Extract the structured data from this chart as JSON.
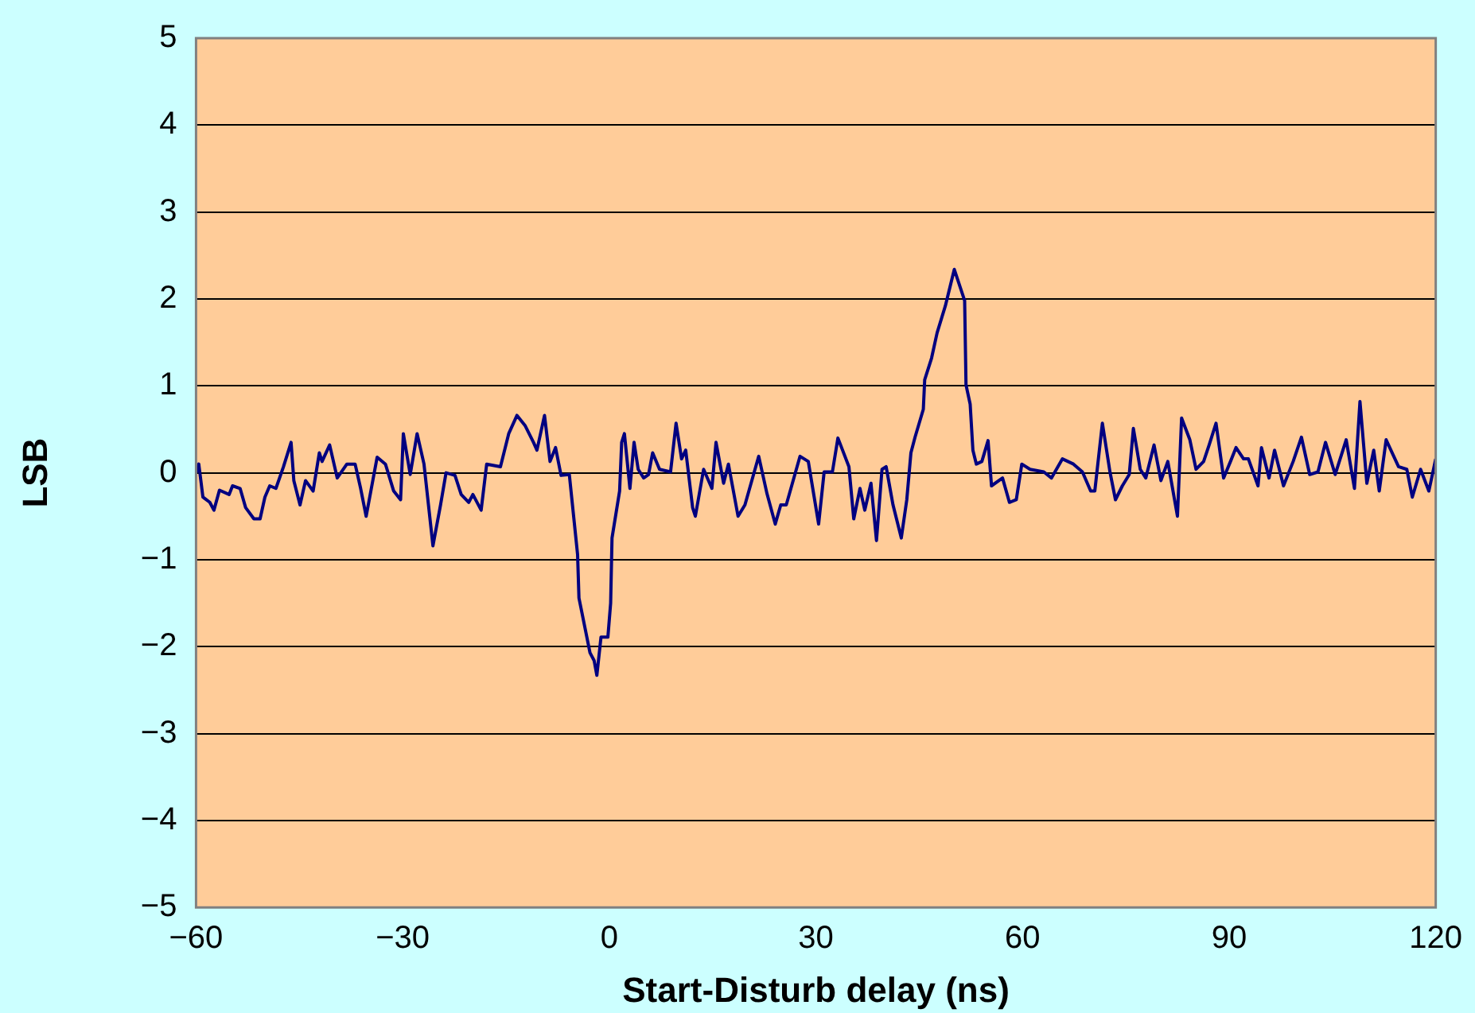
{
  "chart_data": {
    "type": "line",
    "xlabel": "Start-Disturb delay (ns)",
    "ylabel": "LSB",
    "xlim": [
      -60,
      120
    ],
    "xticks": [
      -60,
      -30,
      0,
      30,
      60,
      90,
      120
    ],
    "ylim": [
      -5,
      5
    ],
    "yticks": [
      -5,
      -4,
      -3,
      -2,
      -1,
      0,
      1,
      2,
      3,
      4,
      5
    ],
    "grid": "y",
    "legend": false,
    "marker": "none",
    "line_style": "solid",
    "series": [
      {
        "color": "#000080",
        "x": [
          -60,
          -59.6,
          -59,
          -58,
          -57.4,
          -56.6,
          -55.2,
          -54.7,
          -53.6,
          -52.8,
          -51.6,
          -50.7,
          -50,
          -49.3,
          -48.4,
          -47.3,
          -46.2,
          -45.8,
          -44.9,
          -44.1,
          -43,
          -42.1,
          -41.7,
          -40.6,
          -39.5,
          -38.1,
          -36.9,
          -36.1,
          -35.3,
          -33.7,
          -32.5,
          -31.3,
          -30.3,
          -29.9,
          -28.9,
          -27.9,
          -26.9,
          -25.6,
          -24.5,
          -23.7,
          -22.4,
          -21.5,
          -20.4,
          -19.8,
          -18.6,
          -17.8,
          -15.8,
          -14.6,
          -13.4,
          -12.2,
          -11,
          -10.5,
          -9.4,
          -8.6,
          -7.8,
          -7,
          -5.8,
          -4.6,
          -4.4,
          -2.8,
          -2.2,
          -1.8,
          -1.2,
          -0.2,
          0.2,
          0.4,
          1.5,
          1.8,
          2.2,
          3,
          3.6,
          4.2,
          5,
          5.7,
          6.3,
          7.3,
          8.9,
          9.7,
          10.5,
          11.1,
          12.1,
          12.5,
          13.7,
          14.9,
          15.5,
          16.6,
          17.3,
          18.7,
          19.7,
          21.7,
          22.9,
          24.1,
          24.9,
          25.7,
          27.7,
          28.9,
          30.4,
          31.2,
          32.4,
          33.2,
          34.8,
          35.5,
          36.4,
          37.1,
          38,
          38.8,
          39.6,
          40.2,
          41.2,
          42.4,
          43.2,
          43.8,
          44.4,
          45.6,
          45.8,
          46.8,
          47.6,
          48.8,
          50.1,
          51.6,
          51.8,
          52.4,
          52.8,
          53.3,
          54.1,
          55,
          55.5,
          57.1,
          58.1,
          59.1,
          59.9,
          61.1,
          63.1,
          64.2,
          65.8,
          67.4,
          68.7,
          69.9,
          70.5,
          71.6,
          72.7,
          73.5,
          74.5,
          75.5,
          76.1,
          77.1,
          77.9,
          79.1,
          80.1,
          81.1,
          82.5,
          83.1,
          84.3,
          85.2,
          86.3,
          87.1,
          88.1,
          89.2,
          90.2,
          91,
          92.1,
          92.8,
          94.2,
          94.7,
          95.8,
          96.6,
          97.9,
          99.3,
          100.5,
          101.7,
          102.9,
          104,
          105.4,
          107,
          108.2,
          109,
          110,
          111,
          111.8,
          112.8,
          114.6,
          115.8,
          116.6,
          117.8,
          119,
          120
        ],
        "values": [
          0,
          0.1,
          -0.28,
          -0.34,
          -0.43,
          -0.2,
          -0.25,
          -0.15,
          -0.18,
          -0.4,
          -0.53,
          -0.53,
          -0.28,
          -0.15,
          -0.18,
          0.07,
          0.35,
          -0.09,
          -0.37,
          -0.09,
          -0.21,
          0.23,
          0.13,
          0.32,
          -0.06,
          0.1,
          0.1,
          -0.18,
          -0.5,
          0.18,
          0.1,
          -0.21,
          -0.31,
          0.45,
          -0.02,
          0.45,
          0.1,
          -0.84,
          -0.37,
          0,
          -0.03,
          -0.25,
          -0.34,
          -0.25,
          -0.43,
          0.1,
          0.07,
          0.45,
          0.66,
          0.54,
          0.35,
          0.26,
          0.66,
          0.13,
          0.29,
          -0.03,
          -0.02,
          -0.94,
          -1.44,
          -2.07,
          -2.16,
          -2.33,
          -1.89,
          -1.89,
          -1.5,
          -0.75,
          -0.21,
          0.35,
          0.45,
          -0.18,
          0.35,
          0.04,
          -0.06,
          -0.02,
          0.23,
          0.04,
          0.01,
          0.57,
          0.16,
          0.26,
          -0.4,
          -0.5,
          0.04,
          -0.18,
          0.35,
          -0.12,
          0.1,
          -0.5,
          -0.37,
          0.19,
          -0.24,
          -0.59,
          -0.37,
          -0.37,
          0.19,
          0.13,
          -0.59,
          0.01,
          0.01,
          0.4,
          0.07,
          -0.53,
          -0.18,
          -0.43,
          -0.12,
          -0.78,
          0.04,
          0.07,
          -0.37,
          -0.75,
          -0.31,
          0.23,
          0.41,
          0.73,
          1.07,
          1.32,
          1.61,
          1.92,
          2.34,
          1.98,
          1.01,
          0.79,
          0.26,
          0.1,
          0.13,
          0.37,
          -0.15,
          -0.06,
          -0.34,
          -0.31,
          0.1,
          0.04,
          0.01,
          -0.06,
          0.16,
          0.1,
          0.01,
          -0.21,
          -0.21,
          0.57,
          0.01,
          -0.31,
          -0.15,
          -0.02,
          0.51,
          0.04,
          -0.06,
          0.32,
          -0.09,
          0.13,
          -0.5,
          0.63,
          0.38,
          0.04,
          0.13,
          0.32,
          0.57,
          -0.06,
          0.13,
          0.29,
          0.16,
          0.16,
          -0.15,
          0.29,
          -0.06,
          0.26,
          -0.15,
          0.13,
          0.41,
          -0.02,
          0.01,
          0.35,
          -0.02,
          0.38,
          -0.18,
          0.82,
          -0.12,
          0.26,
          -0.21,
          0.38,
          0.07,
          0.04,
          -0.28,
          0.04,
          -0.21,
          0.16
        ]
      }
    ]
  }
}
